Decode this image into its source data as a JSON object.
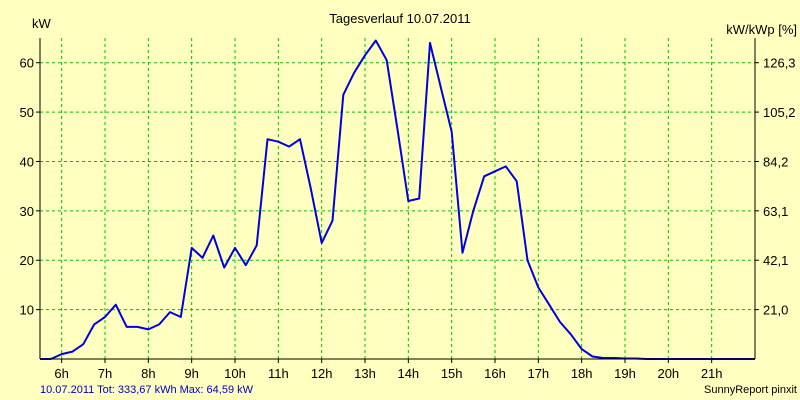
{
  "colors": {
    "background": "#FFFFC0",
    "plot_background": "#FFFFC0",
    "grid": "#00C000",
    "line": "#0000E0",
    "footer_text": "#0000C0"
  },
  "chart_data": {
    "type": "line",
    "title": "Tagesverlauf 10.07.2011",
    "ylabel_left": "kW",
    "ylabel_right": "kW/kWp [%]",
    "xlim": [
      5.5,
      22
    ],
    "ylim": [
      0,
      65
    ],
    "x_ticks": [
      6,
      7,
      8,
      9,
      10,
      11,
      12,
      13,
      14,
      15,
      16,
      17,
      18,
      19,
      20,
      21
    ],
    "x_tick_labels": [
      "6h",
      "7h",
      "8h",
      "9h",
      "10h",
      "11h",
      "12h",
      "13h",
      "14h",
      "15h",
      "16h",
      "17h",
      "18h",
      "19h",
      "20h",
      "21h"
    ],
    "y_ticks_left": [
      10,
      20,
      30,
      40,
      50,
      60
    ],
    "y_tick_labels_left": [
      "10",
      "20",
      "30",
      "40",
      "50",
      "60"
    ],
    "y_ticks_right": [
      10,
      20,
      30,
      40,
      50,
      60
    ],
    "y_tick_labels_right": [
      "21,0",
      "42,1",
      "63,1",
      "84,2",
      "105,2",
      "126,3"
    ],
    "grid": true,
    "series": [
      {
        "name": "kW",
        "x": [
          5.5,
          5.75,
          6.0,
          6.25,
          6.5,
          6.75,
          7.0,
          7.25,
          7.5,
          7.75,
          8.0,
          8.25,
          8.5,
          8.75,
          9.0,
          9.25,
          9.5,
          9.75,
          10.0,
          10.25,
          10.5,
          10.75,
          11.0,
          11.25,
          11.5,
          11.75,
          12.0,
          12.25,
          12.5,
          12.75,
          13.0,
          13.25,
          13.5,
          13.75,
          14.0,
          14.25,
          14.5,
          14.75,
          15.0,
          15.25,
          15.5,
          15.75,
          16.0,
          16.25,
          16.5,
          16.75,
          17.0,
          17.25,
          17.5,
          17.75,
          18.0,
          18.25,
          18.5,
          18.75,
          19.0,
          19.25,
          19.5,
          20.0,
          21.0,
          22.0
        ],
        "values": [
          0,
          0,
          1,
          1.5,
          3,
          7,
          8.5,
          11,
          6.5,
          6.5,
          6,
          7,
          9.5,
          8.5,
          22.5,
          20.5,
          25,
          18.5,
          22.5,
          19,
          23,
          44.5,
          44,
          43,
          44.5,
          34.5,
          23.5,
          28,
          53.5,
          58,
          61.5,
          64.5,
          60.5,
          46.5,
          32,
          32.5,
          64,
          55,
          46,
          21.5,
          30,
          37,
          38,
          39,
          36,
          20,
          14.5,
          11,
          7.5,
          5,
          2,
          0.5,
          0.2,
          0.2,
          0.1,
          0.1,
          0,
          0,
          0,
          0
        ]
      }
    ]
  },
  "footer": {
    "summary": "10.07.2011 Tot: 333,67 kWh Max: 64,59 kW",
    "credit": "SunnyReport pinxit"
  }
}
